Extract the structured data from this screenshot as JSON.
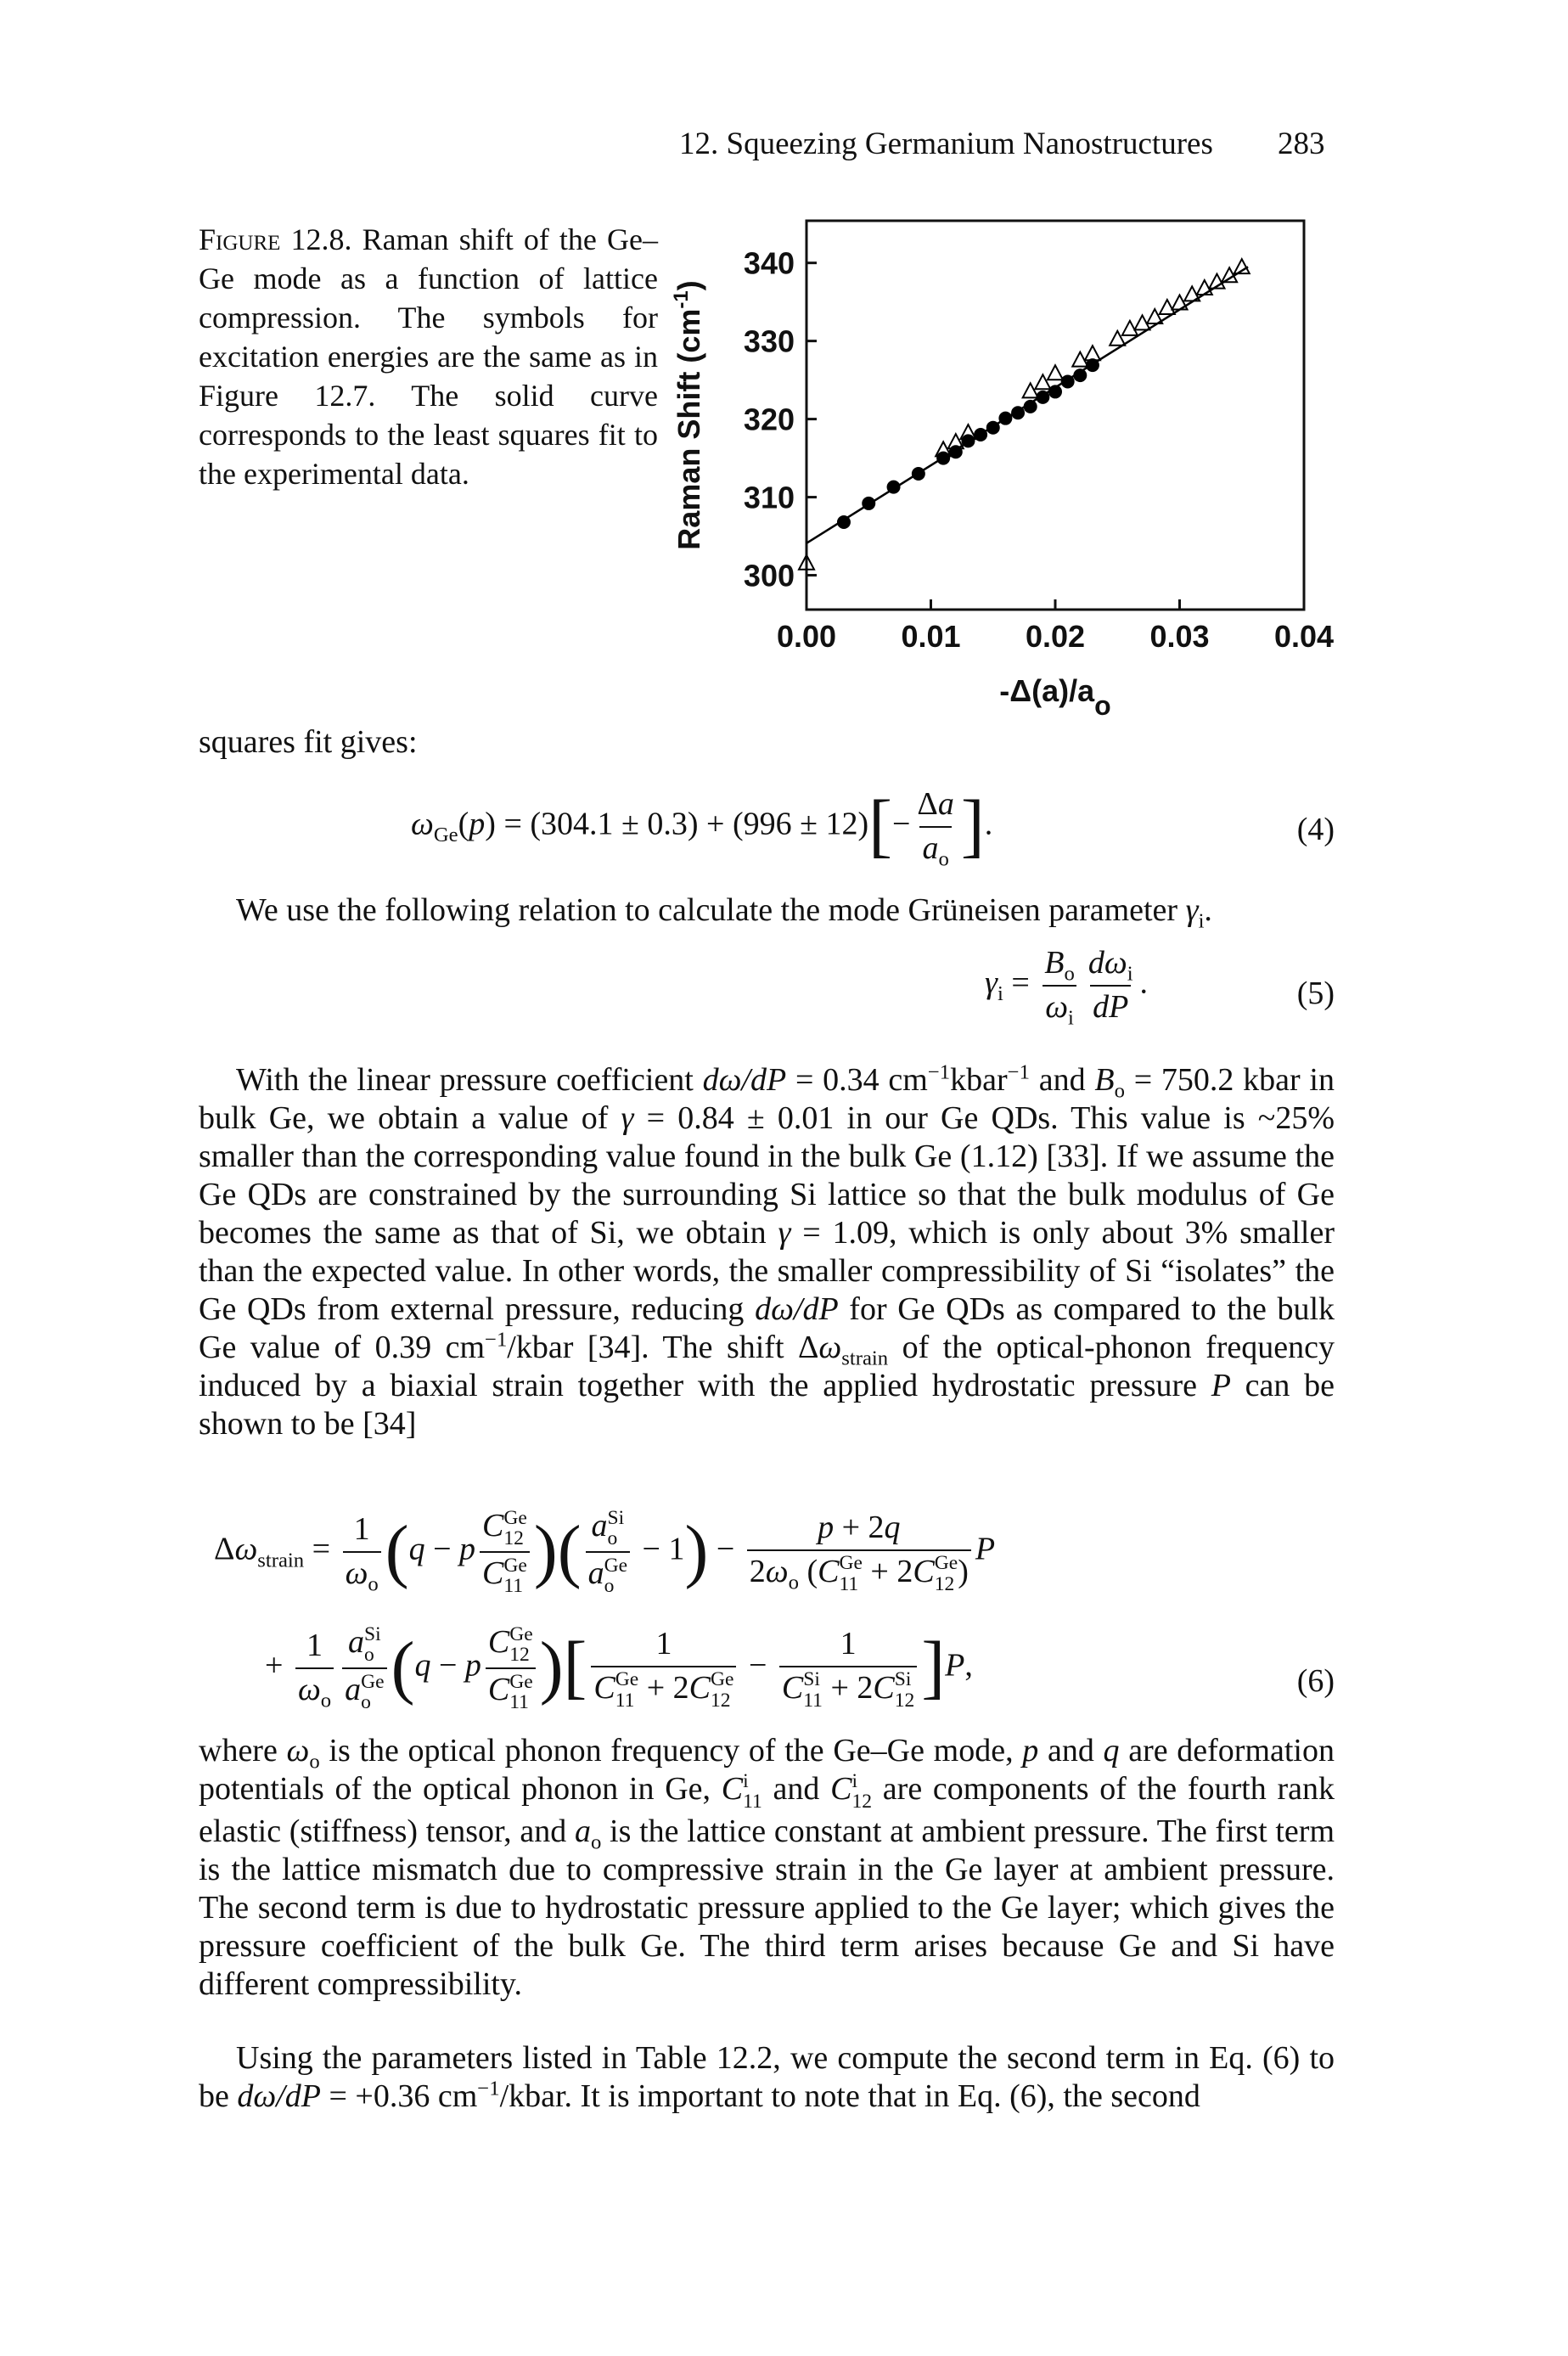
{
  "header": {
    "running_title": "12. Squeezing Germanium Nanostructures",
    "page_number": "283"
  },
  "figure": {
    "caption_label": "Figure",
    "caption": " 12.8. Raman shift of the Ge–Ge mode as a function of lattice compression. The symbols for excitation energies are the same as in Figure 12.7. The solid curve corresponds to the least squares fit to the experimental data."
  },
  "chart_data": {
    "type": "scatter",
    "xlabel": [
      "-Δ(a)/a",
      "o"
    ],
    "ylabel": [
      "Raman Shift (cm",
      "-1",
      ")"
    ],
    "xlim": [
      0,
      0.04
    ],
    "xticks": [
      {
        "value": 0,
        "label": "0.00"
      },
      {
        "value": 0.01,
        "label": "0.01"
      },
      {
        "value": 0.02,
        "label": "0.02"
      },
      {
        "value": 0.03,
        "label": "0.03"
      },
      {
        "value": 0.04,
        "label": "0.04"
      }
    ],
    "ylim": [
      295.6,
      345.4
    ],
    "yticks": [
      300,
      310,
      320,
      330,
      340
    ],
    "series": [
      {
        "style": "marker",
        "marker": "circle",
        "filled": true,
        "color": "#000000",
        "x": [
          0.003,
          0.005,
          0.007,
          0.009,
          0.011,
          0.012,
          0.013,
          0.014,
          0.015,
          0.016,
          0.017,
          0.018,
          0.019,
          0.02,
          0.021,
          0.022,
          0.023
        ],
        "values": [
          306.8,
          309.2,
          311.3,
          313.0,
          315.0,
          315.8,
          317.2,
          318.0,
          318.9,
          320.1,
          320.8,
          321.6,
          322.8,
          323.5,
          324.8,
          325.6,
          326.9
        ]
      },
      {
        "style": "marker",
        "marker": "triangle",
        "filled": false,
        "color": "#000000",
        "x": [
          0.0,
          0.011,
          0.012,
          0.013,
          0.018,
          0.019,
          0.02,
          0.022,
          0.023,
          0.025,
          0.026,
          0.027,
          0.028,
          0.029,
          0.03,
          0.031,
          0.032,
          0.033,
          0.034,
          0.035
        ],
        "values": [
          301.5,
          316,
          317,
          318.2,
          323.5,
          324.6,
          325.8,
          327.5,
          328.3,
          330.2,
          331.5,
          332.2,
          333.0,
          334.2,
          334.8,
          335.9,
          336.7,
          337.5,
          338.3,
          339.4
        ]
      },
      {
        "style": "line",
        "color": "#000000",
        "x": [
          0,
          0.0355
        ],
        "values": [
          304.1,
          339.5
        ]
      }
    ]
  },
  "body": {
    "blocks": [
      {
        "parts": [
          "squares fit gives:"
        ]
      },
      {
        "lines": [
          [
            {
              "it": "ω"
            },
            {
              "sub": "Ge"
            },
            "(",
            {
              "it": "p"
            },
            ") = (304.1 ± 0.3) + (996 ± 12)",
            {
              "big": "["
            },
            "−",
            {
              "frac": {
                "num": [
                  "Δ",
                  {
                    "it": "a"
                  }
                ],
                "den": [
                  {
                    "it": "a"
                  },
                  {
                    "sub": "o"
                  }
                ]
              }
            },
            {
              "big": "]"
            },
            "."
          ]
        ],
        "number": "(4)"
      },
      {
        "indent": true,
        "parts": [
          "We use the following relation to calculate the mode Grüneisen parameter ",
          {
            "it": "γ"
          },
          {
            "sub": "i"
          },
          "."
        ]
      },
      {
        "lines": [
          [
            {
              "it": "γ"
            },
            {
              "sub": "i"
            },
            " = ",
            {
              "frac": {
                "num": [
                  {
                    "it": "B"
                  },
                  {
                    "sub": "o"
                  }
                ],
                "den": [
                  {
                    "it": "ω"
                  },
                  {
                    "sub": "i"
                  }
                ]
              }
            },
            {
              "frac": {
                "num": [
                  {
                    "it": "dω"
                  },
                  {
                    "sub": "i"
                  }
                ],
                "den": [
                  {
                    "it": "dP"
                  }
                ]
              }
            },
            "."
          ]
        ],
        "number": "(5)"
      },
      {
        "indent": true,
        "parts": [
          "With the linear pressure coefficient ",
          {
            "it": "dω/dP"
          },
          " = 0.34 cm",
          {
            "sup": "−1"
          },
          "kbar",
          {
            "sup": "−1"
          },
          " and ",
          {
            "it": "B"
          },
          {
            "sub": "o"
          },
          " = 750.2 kbar in bulk Ge, we obtain a value of ",
          {
            "it": "γ"
          },
          " = 0.84 ± 0.01 in our Ge QDs. This value is ~25% smaller than the corresponding value found in the bulk Ge (1.12) [33]. If we assume the Ge QDs are constrained by the surrounding Si lattice so that the bulk modulus of Ge becomes the same as that of Si, we obtain ",
          {
            "it": "γ"
          },
          " = 1.09, which is only about 3% smaller than the expected value. In other words, the smaller compressibility of Si “isolates” the Ge QDs from external pressure, reducing ",
          {
            "it": "dω/dP"
          },
          " for Ge QDs as compared to the bulk Ge value of 0.39 cm",
          {
            "sup": "−1"
          },
          "/kbar [34]. The shift Δ",
          {
            "it": "ω"
          },
          {
            "sub": "strain"
          },
          " of the optical-phonon frequency induced by a biaxial strain together with the applied hydrostatic pressure ",
          {
            "it": "P"
          },
          " can be shown to be [34]"
        ]
      },
      {
        "lines": [
          [
            "Δ",
            {
              "it": "ω"
            },
            {
              "sub": "strain"
            },
            " = ",
            {
              "frac": {
                "num": [
                  "1"
                ],
                "den": [
                  {
                    "it": "ω"
                  },
                  {
                    "sub": "o"
                  }
                ]
              }
            },
            {
              "big": "("
            },
            {
              "it": "q"
            },
            " − ",
            {
              "it": "p"
            },
            {
              "frac": {
                "num": [
                  {
                    "it": "C"
                  },
                  {
                    "ss": {
                      "sub": "12",
                      "sup": "Ge"
                    }
                  }
                ],
                "den": [
                  {
                    "it": "C"
                  },
                  {
                    "ss": {
                      "sub": "11",
                      "sup": "Ge"
                    }
                  }
                ]
              }
            },
            {
              "big": ")"
            },
            {
              "big": "("
            },
            {
              "frac": {
                "num": [
                  {
                    "it": "a"
                  },
                  {
                    "ss": {
                      "sub": "o",
                      "sup": "Si"
                    }
                  }
                ],
                "den": [
                  {
                    "it": "a"
                  },
                  {
                    "ss": {
                      "sub": "o",
                      "sup": "Ge"
                    }
                  }
                ]
              }
            },
            " − 1",
            {
              "big": ")"
            },
            " − ",
            {
              "frac": {
                "num": [
                  {
                    "it": "p"
                  },
                  " + 2",
                  {
                    "it": "q"
                  }
                ],
                "den": [
                  "2",
                  {
                    "it": "ω"
                  },
                  {
                    "sub": "o"
                  },
                  " (",
                  {
                    "it": "C"
                  },
                  {
                    "ss": {
                      "sub": "11",
                      "sup": "Ge"
                    }
                  },
                  " + 2",
                  {
                    "it": "C"
                  },
                  {
                    "ss": {
                      "sub": "12",
                      "sup": "Ge"
                    }
                  },
                  ")"
                ]
              }
            },
            {
              "it": "P"
            }
          ],
          [
            "+ ",
            {
              "frac": {
                "num": [
                  "1"
                ],
                "den": [
                  {
                    "it": "ω"
                  },
                  {
                    "sub": "o"
                  }
                ]
              }
            },
            {
              "frac": {
                "num": [
                  {
                    "it": "a"
                  },
                  {
                    "ss": {
                      "sub": "o",
                      "sup": "Si"
                    }
                  }
                ],
                "den": [
                  {
                    "it": "a"
                  },
                  {
                    "ss": {
                      "sub": "o",
                      "sup": "Ge"
                    }
                  }
                ]
              }
            },
            {
              "big": "("
            },
            {
              "it": "q"
            },
            " − ",
            {
              "it": "p"
            },
            {
              "frac": {
                "num": [
                  {
                    "it": "C"
                  },
                  {
                    "ss": {
                      "sub": "12",
                      "sup": "Ge"
                    }
                  }
                ],
                "den": [
                  {
                    "it": "C"
                  },
                  {
                    "ss": {
                      "sub": "11",
                      "sup": "Ge"
                    }
                  }
                ]
              }
            },
            {
              "big": ")"
            },
            {
              "big": "["
            },
            {
              "frac": {
                "num": [
                  "1"
                ],
                "den": [
                  {
                    "it": "C"
                  },
                  {
                    "ss": {
                      "sub": "11",
                      "sup": "Ge"
                    }
                  },
                  " + 2",
                  {
                    "it": "C"
                  },
                  {
                    "ss": {
                      "sub": "12",
                      "sup": "Ge"
                    }
                  }
                ]
              }
            },
            " − ",
            {
              "frac": {
                "num": [
                  "1"
                ],
                "den": [
                  {
                    "it": "C"
                  },
                  {
                    "ss": {
                      "sub": "11",
                      "sup": "Si"
                    }
                  },
                  " + 2",
                  {
                    "it": "C"
                  },
                  {
                    "ss": {
                      "sub": "12",
                      "sup": "Si"
                    }
                  }
                ]
              }
            },
            {
              "big": "]"
            },
            {
              "it": "P"
            },
            ","
          ]
        ],
        "number": "(6)"
      },
      {
        "parts": [
          "where ",
          {
            "it": "ω"
          },
          {
            "sub": "o"
          },
          " is the optical phonon frequency of the Ge–Ge mode, ",
          {
            "it": "p"
          },
          " and ",
          {
            "it": "q"
          },
          " are deformation potentials of the optical phonon in Ge, ",
          {
            "it": "C"
          },
          {
            "ss": {
              "sub": "11",
              "sup": "i"
            }
          },
          " and ",
          {
            "it": "C"
          },
          {
            "ss": {
              "sub": "12",
              "sup": "i"
            }
          },
          " are components of the fourth rank elastic (stiffness) tensor, and ",
          {
            "it": "a"
          },
          {
            "sub": "o"
          },
          " is the lattice constant at ambient pressure. The first term is the lattice mismatch due to compressive strain in the Ge layer at ambient pressure. The second term is due to hydrostatic pressure applied to the Ge layer; which gives the pressure coefficient of the bulk Ge. The third term arises because Ge and Si have different compressibility."
        ]
      },
      {
        "indent": true,
        "parts": [
          "Using the parameters listed in Table 12.2, we compute the second term in Eq. (6) to be ",
          {
            "it": "dω/dP"
          },
          " = +0.36 cm",
          {
            "sup": "−1"
          },
          "/kbar. It is important to note that in Eq. (6), the second"
        ]
      }
    ]
  }
}
